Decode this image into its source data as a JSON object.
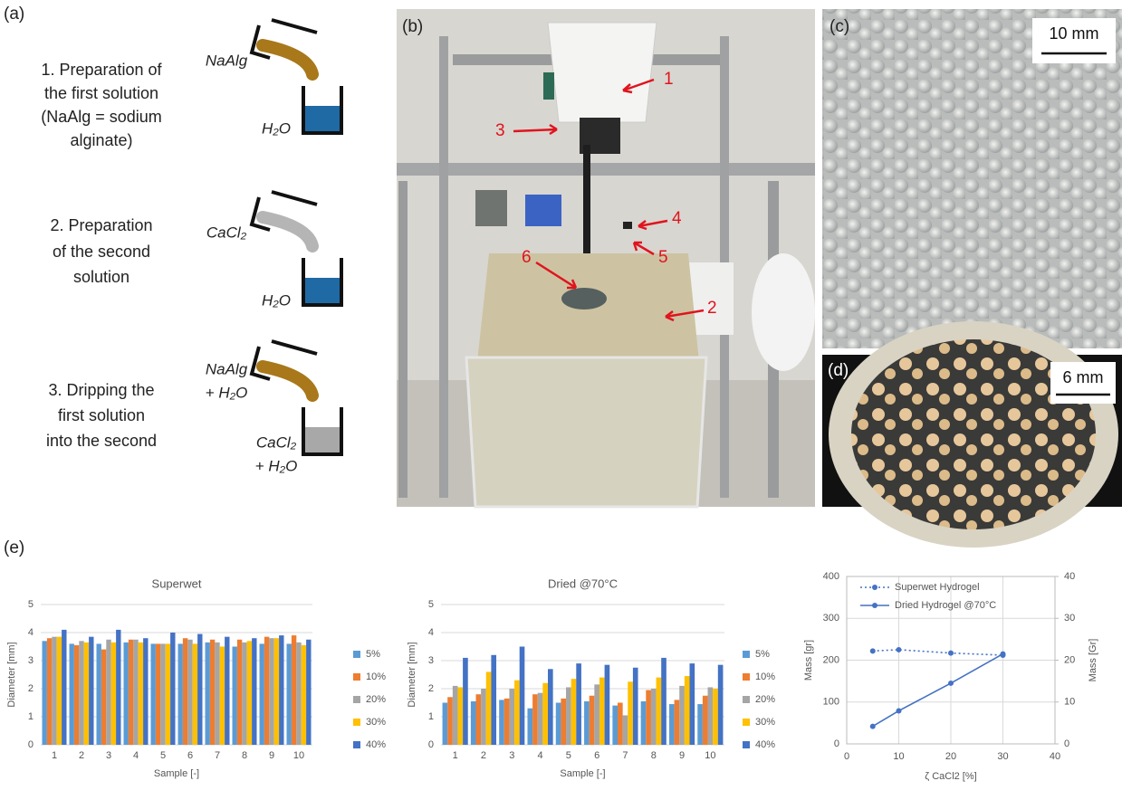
{
  "figure": {
    "panel_labels": [
      "(a)",
      "(b)",
      "(c)",
      "(d)",
      "(e)"
    ],
    "steps": [
      [
        "1. Preparation of",
        "the first solution",
        "(NaAlg = sodium",
        "alginate)"
      ],
      [
        "2. Preparation",
        "of the second",
        "solution"
      ],
      [
        "3. Dripping the",
        "first solution",
        "into the second"
      ]
    ],
    "reagents": [
      {
        "poured": [
          "NaAlg"
        ],
        "beaker": [
          "H₂O"
        ]
      },
      {
        "poured": [
          "CaCl₂"
        ],
        "beaker": [
          "H₂O"
        ]
      },
      {
        "poured": [
          "NaAlg",
          "+ H₂O"
        ],
        "beaker": [
          "CaCl₂",
          "+ H₂O"
        ]
      }
    ],
    "annotations": [
      "1",
      "2",
      "3",
      "4",
      "5",
      "6"
    ],
    "scale_bars": [
      "10 mm",
      "6 mm"
    ]
  },
  "chart_data": [
    {
      "type": "bar",
      "title": "Superwet",
      "x_label": "Sample [-]",
      "y_label": "Diameter [mm]",
      "categories": [
        "1",
        "2",
        "3",
        "4",
        "5",
        "6",
        "7",
        "8",
        "9",
        "10"
      ],
      "series": [
        {
          "name": "5%",
          "color": "#5b9bd5",
          "values": [
            3.7,
            3.6,
            3.6,
            3.65,
            3.6,
            3.6,
            3.65,
            3.5,
            3.6,
            3.6
          ]
        },
        {
          "name": "10%",
          "color": "#ed7d31",
          "values": [
            3.8,
            3.55,
            3.4,
            3.75,
            3.6,
            3.8,
            3.75,
            3.75,
            3.85,
            3.9
          ]
        },
        {
          "name": "20%",
          "color": "#a5a5a5",
          "values": [
            3.85,
            3.7,
            3.75,
            3.75,
            3.6,
            3.75,
            3.65,
            3.65,
            3.8,
            3.65
          ]
        },
        {
          "name": "30%",
          "color": "#ffc000",
          "values": [
            3.85,
            3.65,
            3.65,
            3.65,
            3.6,
            3.6,
            3.5,
            3.7,
            3.8,
            3.55
          ]
        },
        {
          "name": "40%",
          "color": "#4472c4",
          "values": [
            4.1,
            3.85,
            4.1,
            3.8,
            4.0,
            3.95,
            3.85,
            3.8,
            3.9,
            3.75
          ]
        }
      ],
      "ylim": [
        0,
        5
      ],
      "yticks": [
        0,
        1,
        2,
        3,
        4,
        5
      ],
      "grid": true,
      "legend": "right"
    },
    {
      "type": "bar",
      "title": "Dried @70°C",
      "x_label": "Sample [-]",
      "y_label": "Diameter [mm]",
      "categories": [
        "1",
        "2",
        "3",
        "4",
        "5",
        "6",
        "7",
        "8",
        "9",
        "10"
      ],
      "series": [
        {
          "name": "5%",
          "color": "#5b9bd5",
          "values": [
            1.5,
            1.55,
            1.6,
            1.3,
            1.5,
            1.55,
            1.4,
            1.55,
            1.45,
            1.45
          ]
        },
        {
          "name": "10%",
          "color": "#ed7d31",
          "values": [
            1.7,
            1.8,
            1.65,
            1.8,
            1.65,
            1.75,
            1.5,
            1.95,
            1.6,
            1.75
          ]
        },
        {
          "name": "20%",
          "color": "#a5a5a5",
          "values": [
            2.1,
            2.0,
            2.0,
            1.85,
            2.05,
            2.15,
            1.05,
            2.0,
            2.1,
            2.05
          ]
        },
        {
          "name": "30%",
          "color": "#ffc000",
          "values": [
            2.05,
            2.6,
            2.3,
            2.2,
            2.35,
            2.4,
            2.25,
            2.4,
            2.45,
            2.0
          ]
        },
        {
          "name": "40%",
          "color": "#4472c4",
          "values": [
            3.1,
            3.2,
            3.5,
            2.7,
            2.9,
            2.85,
            2.75,
            3.1,
            2.9,
            2.85
          ]
        }
      ],
      "ylim": [
        0,
        5
      ],
      "yticks": [
        0,
        1,
        2,
        3,
        4,
        5
      ],
      "grid": true,
      "legend": "right"
    },
    {
      "type": "line",
      "x_label": "ζ CaCl2 [%]",
      "y_label": "Mass [gr]",
      "y2_label": "Mass [Gr]",
      "x": [
        5,
        10,
        20,
        30
      ],
      "series": [
        {
          "name": "Superwet Hydrogel",
          "color": "#4472c4",
          "linestyle": "dotted",
          "values": [
            222,
            225,
            217,
            212
          ]
        },
        {
          "name": "Dried Hydrogel @70°C",
          "color": "#4472c4",
          "linestyle": "solid",
          "axis": "y2",
          "values": [
            4.2,
            7.9,
            14.5,
            21.5
          ]
        }
      ],
      "xlim": [
        0,
        40
      ],
      "xticks": [
        0,
        10,
        20,
        30,
        40
      ],
      "ylim": [
        0,
        400
      ],
      "yticks": [
        0,
        100,
        200,
        300,
        400
      ],
      "y2lim": [
        0,
        40
      ],
      "y2ticks": [
        0,
        10,
        20,
        30,
        40
      ],
      "grid": true,
      "legend": "top"
    }
  ]
}
